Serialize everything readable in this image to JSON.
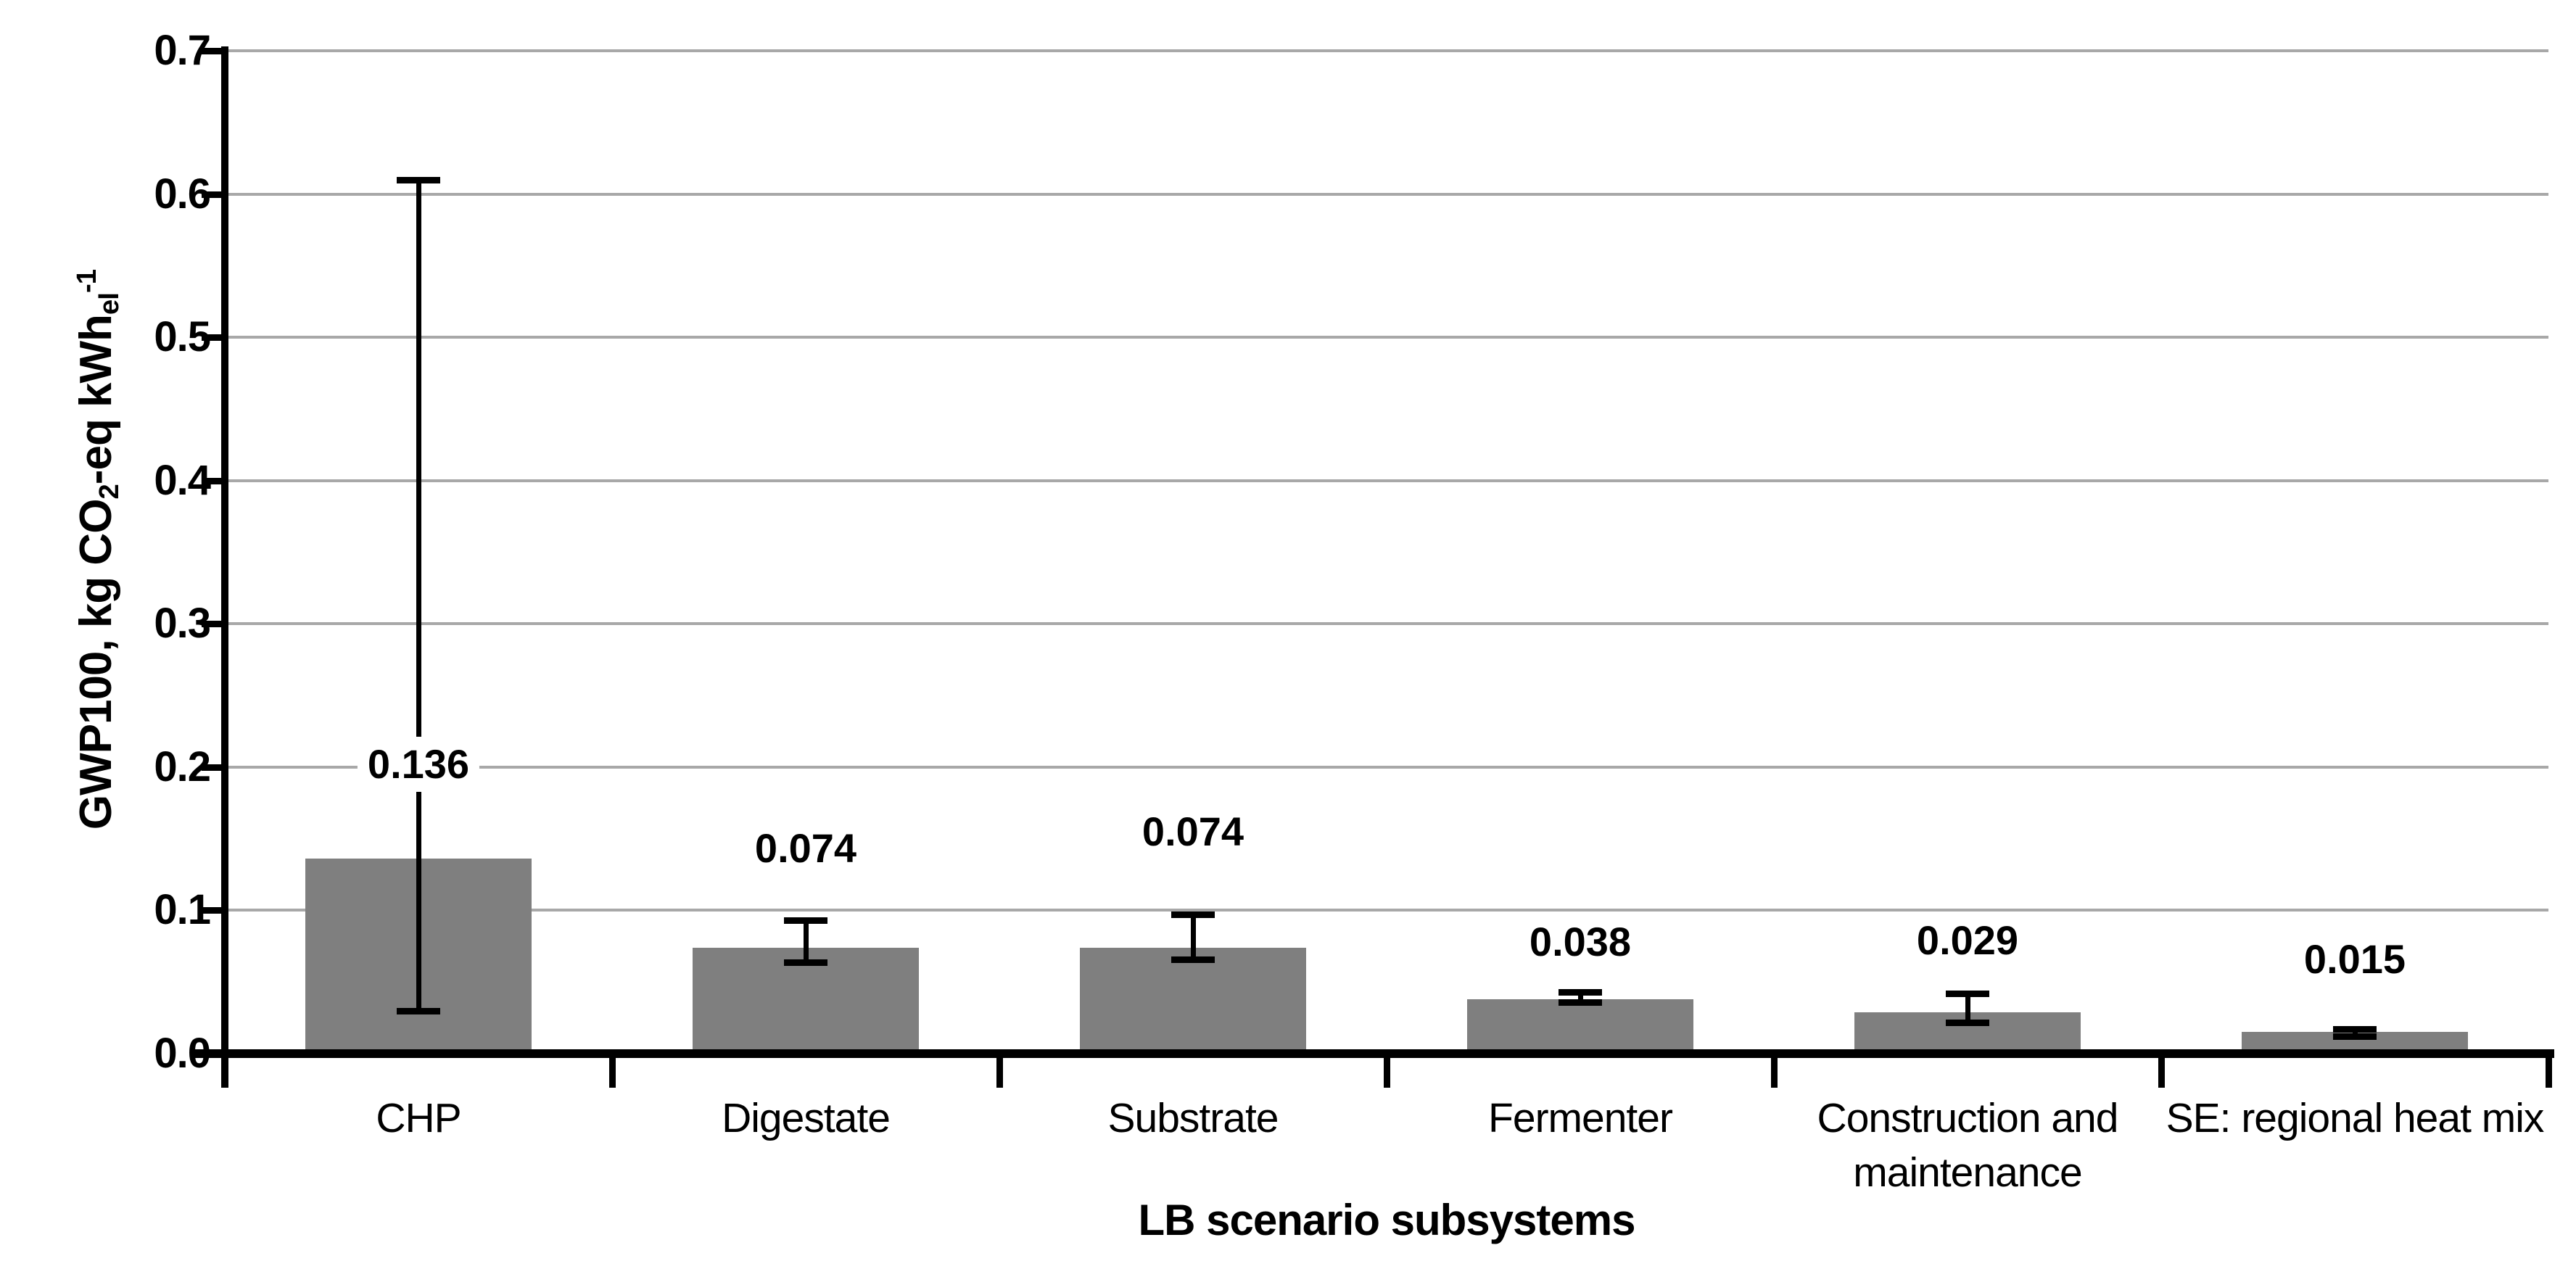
{
  "chart_data": {
    "type": "bar",
    "title": "",
    "xlabel": "LB scenario subsystems",
    "ylabel": "GWP100, kg CO2-eq kWh_el^-1",
    "ylabel_parts": [
      {
        "t": "text",
        "v": "GWP100, kg CO"
      },
      {
        "t": "sub",
        "v": "2"
      },
      {
        "t": "text",
        "v": "-eq kWh"
      },
      {
        "t": "sub",
        "v": "el"
      },
      {
        "t": "sup",
        "v": "-1"
      }
    ],
    "categories": [
      "CHP",
      "Digestate",
      "Substrate",
      "Fermenter",
      "Construction and maintenance",
      "SE: regional heat mix"
    ],
    "values": [
      0.136,
      0.074,
      0.074,
      0.038,
      0.029,
      0.015
    ],
    "data_labels": [
      "0.136",
      "0.074",
      "0.074",
      "0.038",
      "0.029",
      "0.015"
    ],
    "error_low": [
      0.03,
      0.064,
      0.066,
      0.036,
      0.022,
      0.012
    ],
    "error_high": [
      0.61,
      0.093,
      0.097,
      0.043,
      0.042,
      0.017
    ],
    "label_value_pos": [
      0.202,
      0.143,
      0.155,
      0.078,
      0.079,
      0.066
    ],
    "ylim": [
      0,
      0.7
    ],
    "ytick_step": 0.1,
    "ytick_labels": [
      "0.0",
      "0.1",
      "0.2",
      "0.3",
      "0.4",
      "0.5",
      "0.6",
      "0.7"
    ],
    "grid": true,
    "legend": false,
    "bar_color": "#7f7f7f",
    "gridline_color": "#a8a8a8",
    "axis_color": "#000000",
    "text_color": "#000000"
  }
}
